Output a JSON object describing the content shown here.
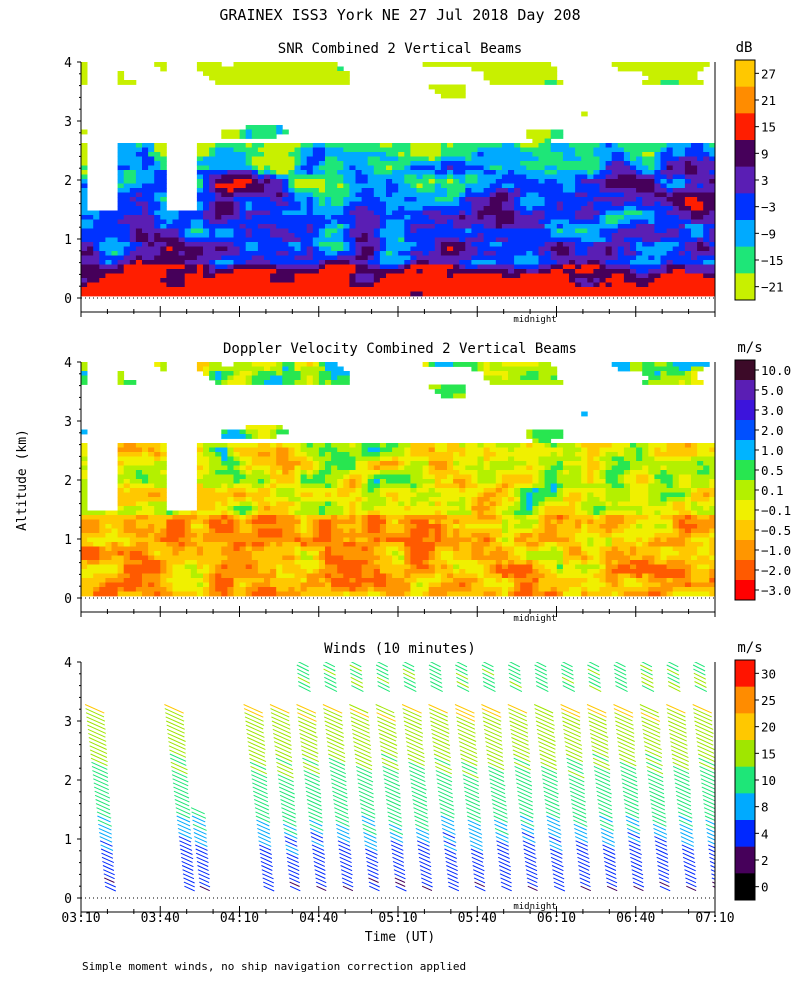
{
  "figure": {
    "title": "GRAINEX ISS3 York NE  27 Jul 2018 Day 208",
    "ylabel": "Altitude (km)",
    "xlabel": "Time (UT)",
    "midnight_label": "midnight",
    "footnote": "Simple moment winds, no ship navigation correction applied",
    "time_ticks": [
      "03:10",
      "03:40",
      "04:10",
      "04:40",
      "05:10",
      "05:40",
      "06:10",
      "06:40",
      "07:10"
    ],
    "altitude_ticks": [
      "0",
      "1",
      "2",
      "3",
      "4"
    ]
  },
  "chart_data": [
    {
      "type": "heatmap",
      "title": "SNR Combined 2 Vertical Beams",
      "unit": "dB",
      "xlim": [
        "03:10",
        "07:10"
      ],
      "ylim": [
        0,
        4
      ],
      "colorbar": {
        "labels": [
          "27",
          "21",
          "15",
          "9",
          "3",
          "−3",
          "−9",
          "−15",
          "−21"
        ],
        "colors": [
          "#ffc800",
          "#ff8c00",
          "#ff1e00",
          "#46005a",
          "#5a1eb4",
          "#0032ff",
          "#00aaff",
          "#1ee678",
          "#c8f000"
        ]
      }
    },
    {
      "type": "heatmap",
      "title": "Doppler Velocity Combined 2 Vertical Beams",
      "unit": "m/s",
      "xlim": [
        "03:10",
        "07:10"
      ],
      "ylim": [
        0,
        4
      ],
      "colorbar": {
        "labels": [
          "10.0",
          "5.0",
          "3.0",
          "2.0",
          "1.0",
          "0.5",
          "0.1",
          "−0.1",
          "−0.5",
          "−1.0",
          "−2.0",
          "−3.0"
        ],
        "colors": [
          "#3c0a28",
          "#5a1eb4",
          "#3c14dc",
          "#0050ff",
          "#00b4ff",
          "#28e650",
          "#b4f000",
          "#f0f000",
          "#ffc800",
          "#ff9600",
          "#ff5a00",
          "#ff0000"
        ]
      }
    },
    {
      "type": "scatter",
      "title": "Winds (10 minutes)",
      "unit": "m/s",
      "xlim": [
        "03:10",
        "07:10"
      ],
      "ylim": [
        0,
        4
      ],
      "profile_times": [
        "03:10",
        "03:40",
        "03:50",
        "04:10",
        "04:20",
        "04:30",
        "04:40",
        "04:50",
        "05:00",
        "05:10",
        "05:20",
        "05:30",
        "05:40",
        "05:50",
        "06:00",
        "06:10",
        "06:20",
        "06:30",
        "06:40",
        "06:50",
        "07:00"
      ],
      "colorbar": {
        "labels": [
          "30",
          "25",
          "20",
          "15",
          "10",
          "8",
          "4",
          "2",
          "0"
        ],
        "colors": [
          "#ff1400",
          "#ff8c00",
          "#ffc800",
          "#a0e600",
          "#1ee678",
          "#00aaff",
          "#0028ff",
          "#46005a",
          "#000000"
        ]
      }
    }
  ]
}
